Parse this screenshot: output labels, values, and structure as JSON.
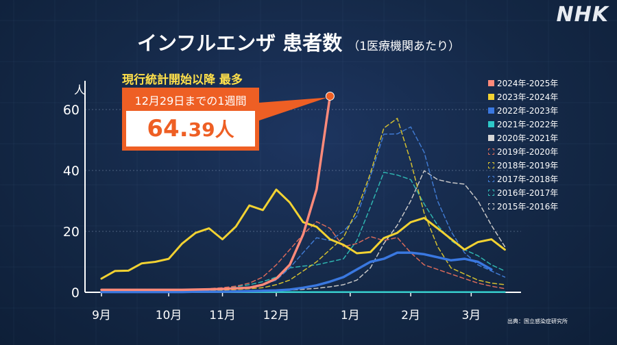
{
  "logo": "NHK",
  "title": "インフルエンザ 患者数",
  "subtitle": "（1医療機関あたり）",
  "callout": {
    "headline": "現行統計開始以降 最多",
    "period": "12月29日までの1週間",
    "value": "64.",
    "value_small": "39人"
  },
  "source": "出典：国立感染症研究所",
  "chart_data": {
    "type": "line",
    "ylabel": "人",
    "ylim": [
      0,
      65
    ],
    "yticks": [
      0,
      20,
      40,
      60
    ],
    "x_weeks": 32,
    "month_ticks": [
      {
        "label": "9月",
        "week": 0
      },
      {
        "label": "10月",
        "week": 5
      },
      {
        "label": "11月",
        "week": 9
      },
      {
        "label": "12月",
        "week": 13
      },
      {
        "label": "1月",
        "week": 18.5
      },
      {
        "label": "2月",
        "week": 23
      },
      {
        "label": "3月",
        "week": 27.5
      }
    ],
    "series": [
      {
        "name": "2024年-2025年",
        "color": "#ff8a7a",
        "style": "solid",
        "width": 3.5,
        "values": [
          0.8,
          0.8,
          0.8,
          0.8,
          0.8,
          0.8,
          0.8,
          0.9,
          1.0,
          1.1,
          1.3,
          1.5,
          2.5,
          4.5,
          9,
          19,
          33.8,
          64.39
        ]
      },
      {
        "name": "2023年-2024年",
        "color": "#f2d232",
        "style": "solid",
        "width": 3,
        "values": [
          4.5,
          7,
          7.1,
          9.5,
          10,
          11,
          16,
          19.5,
          21,
          17.4,
          21.6,
          28.5,
          27,
          33.7,
          29.5,
          23,
          21.5,
          17.4,
          15.6,
          12.8,
          13.2,
          17.8,
          19.5,
          23,
          24.4,
          21,
          17.5,
          14,
          16.5,
          17.4,
          14
        ]
      },
      {
        "name": "2022年-2023年",
        "color": "#3a78e0",
        "style": "solid",
        "width": 3.5,
        "values": [
          0.1,
          0.1,
          0.1,
          0.1,
          0.1,
          0.1,
          0.1,
          0.2,
          0.2,
          0.2,
          0.3,
          0.4,
          0.5,
          0.6,
          0.9,
          1.5,
          2.3,
          3.5,
          5,
          7.5,
          10,
          11,
          13,
          13,
          12.5,
          11.5,
          10.5,
          11,
          10,
          7.5
        ]
      },
      {
        "name": "2021年-2022年",
        "color": "#2ec8c8",
        "style": "solid",
        "width": 2.5,
        "values": [
          0.1,
          0.1,
          0.1,
          0.1,
          0.1,
          0.1,
          0.1,
          0.1,
          0.1,
          0.1,
          0.1,
          0.1,
          0.1,
          0.1,
          0.1,
          0.1,
          0.1,
          0.1,
          0.1,
          0.1,
          0.1,
          0.1,
          0.1,
          0.1,
          0.1,
          0.1,
          0.1,
          0.1,
          0.1,
          0.1,
          0.1
        ]
      },
      {
        "name": "2020年-2021年",
        "color": "#d6d6d6",
        "style": "solid",
        "width": 2.5,
        "values": [
          0.05,
          0.05,
          0.05,
          0.05,
          0.05,
          0.05,
          0.05,
          0.05,
          0.05,
          0.05,
          0.05,
          0.05,
          0.05,
          0.05,
          0.05,
          0.05,
          0.05,
          0.05,
          0.05,
          0.05,
          0.05,
          0.05,
          0.05,
          0.05,
          0.05,
          0.05,
          0.05,
          0.05,
          0.05,
          0.05,
          0.05
        ]
      },
      {
        "name": "2019年-2020年",
        "color": "#d96a5a",
        "style": "dashed",
        "width": 1.5,
        "values": [
          0.5,
          0.5,
          0.6,
          0.6,
          0.7,
          0.8,
          0.9,
          1.0,
          1.2,
          1.5,
          2,
          3,
          5,
          9,
          14,
          19,
          23.2,
          21,
          15,
          16,
          18.3,
          17,
          18,
          13,
          9,
          7.5,
          6,
          4.5,
          3,
          2,
          1.2
        ]
      },
      {
        "name": "2018年-2019年",
        "color": "#d4c030",
        "style": "dashed",
        "width": 1.5,
        "values": [
          0.2,
          0.2,
          0.2,
          0.2,
          0.3,
          0.3,
          0.4,
          0.5,
          0.6,
          0.7,
          0.9,
          1.2,
          1.5,
          2.5,
          4,
          7,
          10,
          14,
          18,
          27,
          39,
          53.9,
          57.1,
          43,
          26,
          15,
          8,
          6,
          4,
          3,
          2.5
        ]
      },
      {
        "name": "2017年-2018年",
        "color": "#3f79d0",
        "style": "dashed",
        "width": 1.5,
        "values": [
          0.2,
          0.2,
          0.2,
          0.3,
          0.3,
          0.4,
          0.5,
          0.6,
          0.8,
          1.0,
          1.3,
          1.8,
          2.5,
          4,
          8,
          13,
          17.9,
          17,
          20,
          25,
          38,
          51.9,
          52,
          54.3,
          46,
          30,
          20,
          13,
          9,
          7,
          5
        ]
      },
      {
        "name": "2016年-2017年",
        "color": "#2fb5b0",
        "style": "dashed",
        "width": 1.5,
        "values": [
          0.2,
          0.2,
          0.2,
          0.3,
          0.4,
          0.5,
          0.6,
          0.8,
          1.0,
          1.3,
          1.8,
          2.5,
          3.5,
          5,
          8,
          8.6,
          9,
          10,
          11,
          17,
          28,
          39.4,
          38.5,
          37,
          29,
          22,
          17,
          14,
          12,
          9,
          7
        ]
      },
      {
        "name": "2015年-2016年",
        "color": "#c8c8c8",
        "style": "dashed",
        "width": 1.5,
        "values": [
          0.1,
          0.1,
          0.1,
          0.1,
          0.1,
          0.1,
          0.1,
          0.2,
          0.2,
          0.2,
          0.3,
          0.3,
          0.4,
          0.5,
          0.7,
          1.0,
          1.3,
          1.8,
          2.5,
          4,
          8,
          16,
          22,
          30,
          39.9,
          37,
          36,
          35.5,
          30,
          22,
          15
        ]
      }
    ]
  }
}
